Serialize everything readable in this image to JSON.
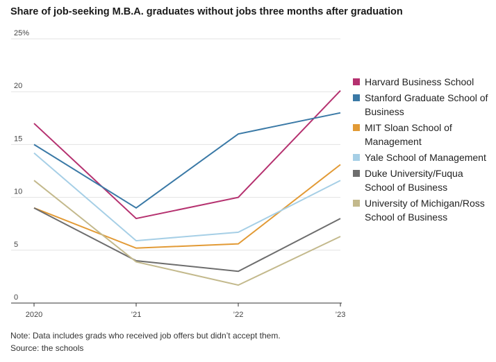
{
  "title": "Share of job-seeking M.B.A. graduates without jobs three months after graduation",
  "note": "Note: Data includes grads who received job offers but didn’t accept them.",
  "source": "Source: the schools",
  "chart_data": {
    "type": "line",
    "categories": [
      "2020",
      "’21",
      "’22",
      "’23"
    ],
    "y_tick_labels": [
      "0",
      "5",
      "10",
      "15",
      "20",
      "25%"
    ],
    "ylim": [
      0,
      25
    ],
    "grid": true,
    "legend_position": "right",
    "series": [
      {
        "name": "Harvard Business School",
        "color": "#b5316f",
        "values": [
          17,
          8,
          10,
          20.1
        ]
      },
      {
        "name": "Stanford Graduate School of Business",
        "color": "#3a79a6",
        "values": [
          15,
          9,
          16,
          18
        ]
      },
      {
        "name": "MIT Sloan School of Management",
        "color": "#e29a35",
        "values": [
          9,
          5.2,
          5.6,
          13.1
        ]
      },
      {
        "name": "Yale School of Management",
        "color": "#a6cfe6",
        "values": [
          14.2,
          5.9,
          6.7,
          11.6
        ]
      },
      {
        "name": "Duke University/Fuqua School of Business",
        "color": "#6d6d6d",
        "values": [
          9,
          4,
          3,
          8
        ]
      },
      {
        "name": "University of Michigan/Ross School of Business",
        "color": "#c3b98c",
        "values": [
          11.6,
          3.9,
          1.7,
          6.3
        ]
      }
    ]
  }
}
